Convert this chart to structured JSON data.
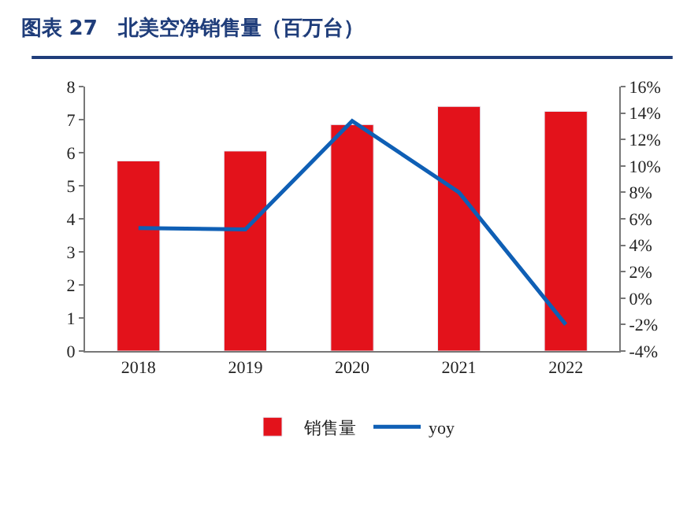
{
  "chart_data": {
    "type": "bar",
    "title": "图表 27　北美空净销售量（百万台）",
    "categories": [
      "2018",
      "2019",
      "2020",
      "2021",
      "2022"
    ],
    "series": [
      {
        "name": "销售量",
        "color": "#e3121b",
        "values": [
          5.75,
          6.05,
          6.85,
          7.4,
          7.25
        ]
      },
      {
        "name": "yoy",
        "type": "line",
        "axis": "y2",
        "color": "#0f5fb5",
        "values": [
          5.3,
          5.2,
          13.4,
          8.0,
          -2.0
        ]
      }
    ],
    "ylim": [
      0,
      8
    ],
    "yticks": [
      0,
      1,
      2,
      3,
      4,
      5,
      6,
      7,
      8
    ],
    "y2lim": [
      -4,
      16
    ],
    "y2ticks": [
      {
        "value": -4,
        "label": "-4%"
      },
      {
        "value": -2,
        "label": "-2%"
      },
      {
        "value": 0,
        "label": "0%"
      },
      {
        "value": 2,
        "label": "2%"
      },
      {
        "value": 4,
        "label": "4%"
      },
      {
        "value": 6,
        "label": "6%"
      },
      {
        "value": 8,
        "label": "8%"
      },
      {
        "value": 10,
        "label": "10%"
      },
      {
        "value": 12,
        "label": "12%"
      },
      {
        "value": 14,
        "label": "14%"
      },
      {
        "value": 16,
        "label": "16%"
      }
    ],
    "legend": "bottom",
    "marker": "none",
    "line_style": "solid"
  }
}
